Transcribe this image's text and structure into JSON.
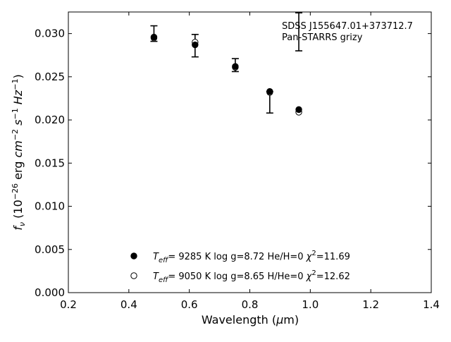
{
  "chart_data": {
    "type": "scatter",
    "xlabel": "Wavelength (μm)",
    "ylabel": "f_ν (10^−26 erg cm^−2 s^−1 Hz^−1)",
    "xlim": [
      0.2,
      1.4
    ],
    "ylim": [
      0.0,
      0.0325
    ],
    "xticks": [
      0.2,
      0.4,
      0.6,
      0.8,
      1.0,
      1.2,
      1.4
    ],
    "xtick_labels": [
      "0.2",
      "0.4",
      "0.6",
      "0.8",
      "1.0",
      "1.2",
      "1.4"
    ],
    "yticks": [
      0.0,
      0.005,
      0.01,
      0.015,
      0.02,
      0.025,
      0.03
    ],
    "ytick_labels": [
      "0.000",
      "0.005",
      "0.010",
      "0.015",
      "0.020",
      "0.025",
      "0.030"
    ],
    "grid": false,
    "annotations": [
      "SDSS J155647.01+373712.7",
      "Pan-STARRS grizy"
    ],
    "observed": {
      "x": [
        0.483,
        0.619,
        0.752,
        0.866,
        0.962
      ],
      "y": [
        0.03,
        0.0286,
        0.0264,
        0.0233,
        0.0324
      ],
      "yerr_lower": [
        0.0009,
        0.0013,
        0.0008,
        0.0025,
        0.0044
      ],
      "yerr_upper": [
        0.0009,
        0.0013,
        0.0007,
        0.0,
        0.0
      ]
    },
    "series": [
      {
        "marker": "filled-circle",
        "legend": {
          "teff_value": "9285 K",
          "logg": "log g=8.72",
          "comp": "He/H=0",
          "chi2": "=11.69"
        },
        "x": [
          0.483,
          0.619,
          0.752,
          0.866,
          0.962
        ],
        "y": [
          0.0296,
          0.0287,
          0.0262,
          0.0233,
          0.0212
        ]
      },
      {
        "marker": "open-circle",
        "legend": {
          "teff_value": "9050 K",
          "logg": "log g=8.65",
          "comp": "H/He=0",
          "chi2": "=12.62"
        },
        "x": [
          0.483,
          0.619,
          0.752,
          0.866,
          0.962
        ],
        "y": [
          0.0295,
          0.029,
          0.0261,
          0.0232,
          0.0209
        ]
      }
    ],
    "legend_placement": "bottom-center"
  }
}
